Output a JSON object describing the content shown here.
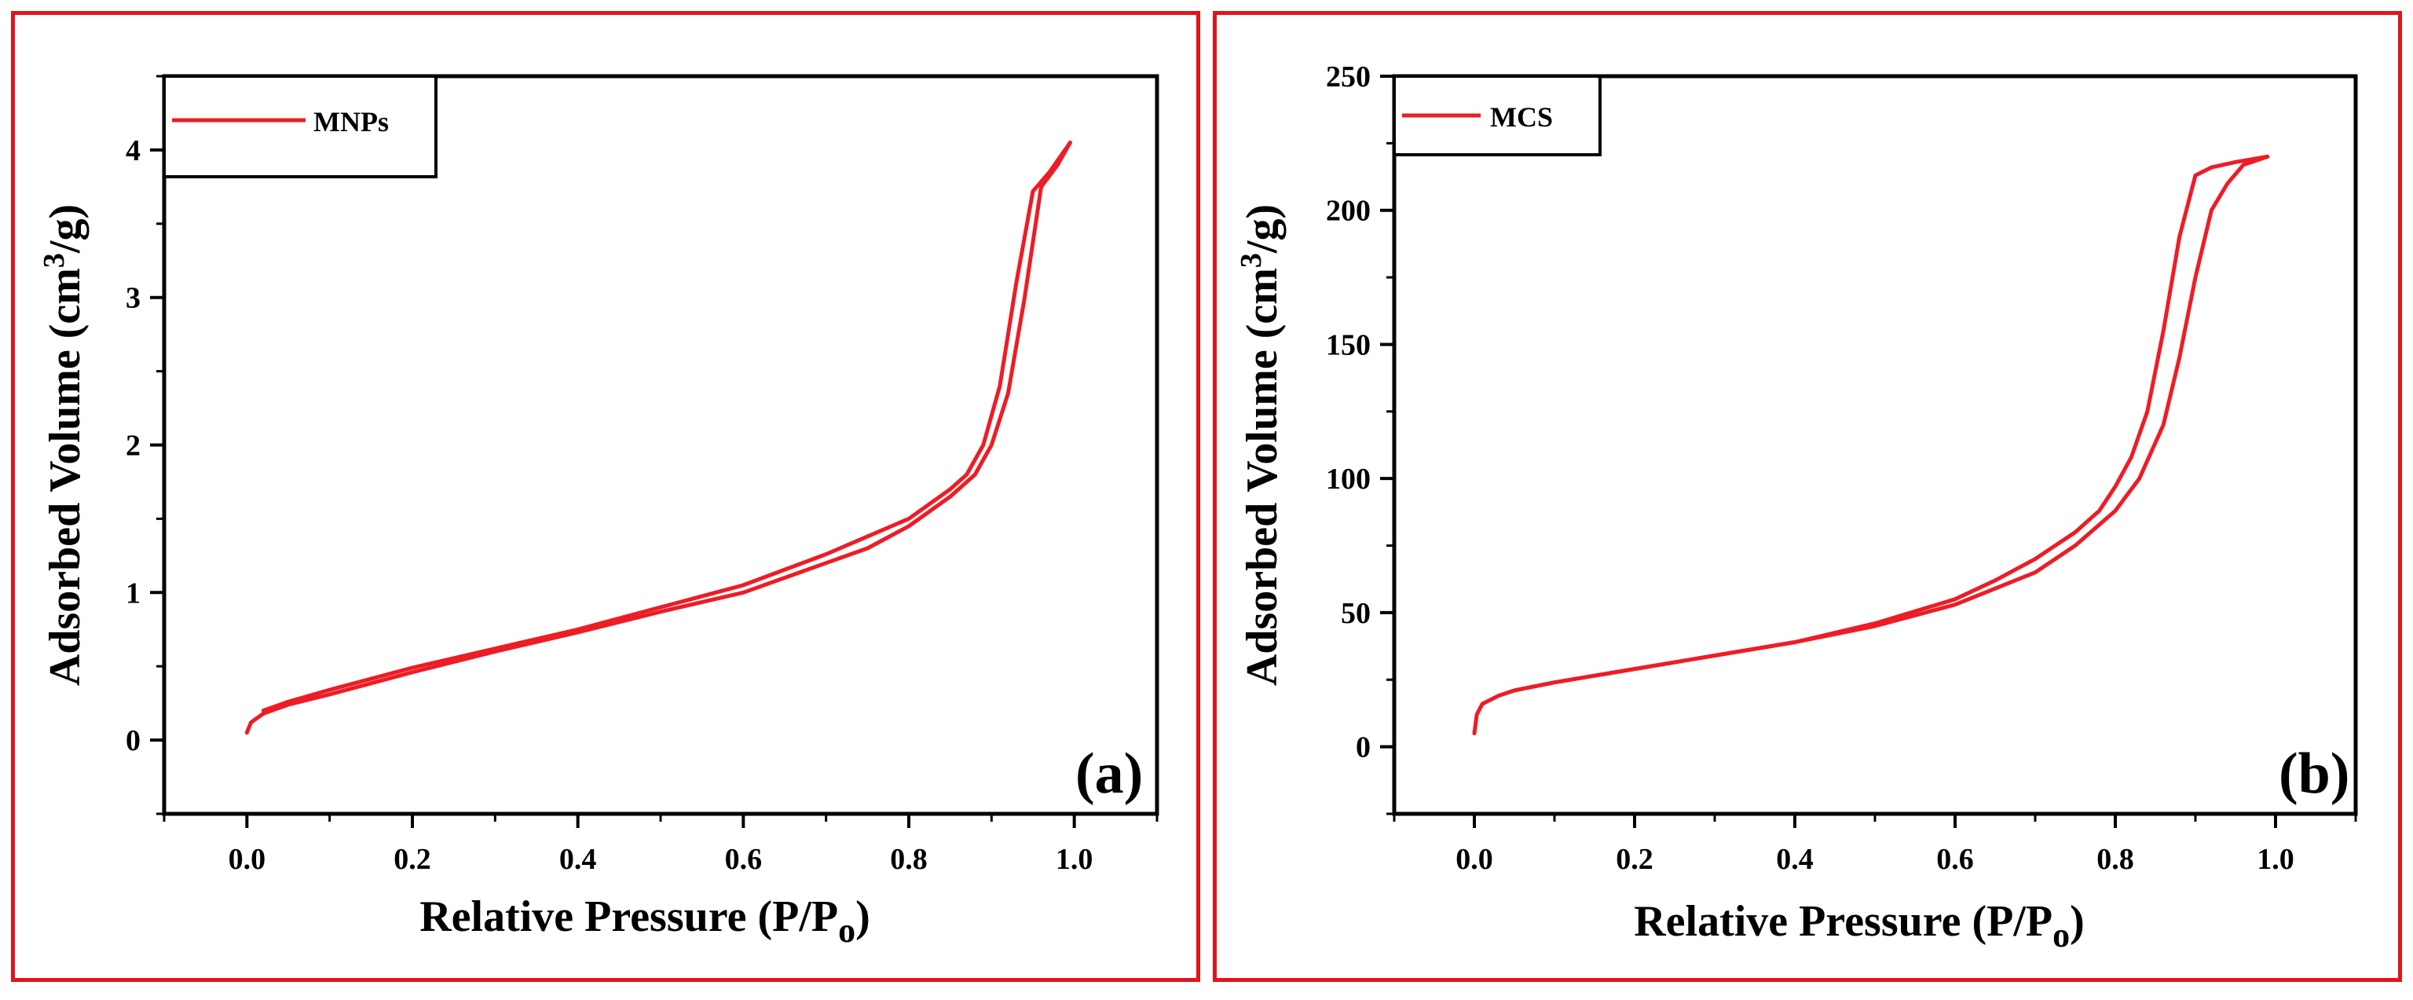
{
  "colors": {
    "frame": "#e0141c",
    "series": "#ee1c25",
    "axis": "#000000"
  },
  "chart_data": [
    {
      "type": "line",
      "panel_label": "(a)",
      "xlabel": "Relative Pressure (P/P",
      "xlabel_sub": "o",
      "xlabel_tail": ")",
      "ylabel_prefix": "Adsorbed Volume (cm",
      "ylabel_sup": "3",
      "ylabel_suffix": "/g)",
      "xlim": [
        -0.1,
        1.1
      ],
      "ylim": [
        -0.5,
        4.5
      ],
      "xticks": [
        0.0,
        0.2,
        0.4,
        0.6,
        0.8,
        1.0
      ],
      "xtick_labels": [
        "0.0",
        "0.2",
        "0.4",
        "0.6",
        "0.8",
        "1.0"
      ],
      "yticks": [
        0,
        1,
        2,
        3,
        4
      ],
      "ytick_labels": [
        "0",
        "1",
        "2",
        "3",
        "4"
      ],
      "legend": {
        "entries": [
          "MNPs"
        ],
        "position": "top-left"
      },
      "series": [
        {
          "name": "MNPs",
          "branch": "adsorption",
          "x": [
            0.0,
            0.005,
            0.02,
            0.05,
            0.1,
            0.2,
            0.3,
            0.4,
            0.5,
            0.6,
            0.7,
            0.75,
            0.8,
            0.85,
            0.88,
            0.9,
            0.92,
            0.94,
            0.96,
            0.98,
            0.995
          ],
          "y": [
            0.05,
            0.12,
            0.18,
            0.24,
            0.31,
            0.46,
            0.6,
            0.73,
            0.87,
            1.0,
            1.2,
            1.3,
            1.45,
            1.65,
            1.8,
            2.0,
            2.35,
            3.0,
            3.75,
            3.9,
            4.05
          ]
        },
        {
          "name": "MNPs",
          "branch": "desorption",
          "x": [
            0.995,
            0.97,
            0.95,
            0.93,
            0.91,
            0.89,
            0.87,
            0.85,
            0.8,
            0.75,
            0.7,
            0.6,
            0.5,
            0.4,
            0.3,
            0.2,
            0.1,
            0.05,
            0.02
          ],
          "y": [
            4.05,
            3.85,
            3.72,
            3.1,
            2.4,
            2.0,
            1.8,
            1.7,
            1.5,
            1.38,
            1.26,
            1.05,
            0.9,
            0.75,
            0.62,
            0.49,
            0.34,
            0.26,
            0.2
          ]
        }
      ]
    },
    {
      "type": "line",
      "panel_label": "(b)",
      "xlabel": "Relative Pressure (P/P",
      "xlabel_sub": "o",
      "xlabel_tail": ")",
      "ylabel_prefix": "Adsorbed Volume (cm",
      "ylabel_sup": "3",
      "ylabel_suffix": "/g)",
      "xlim": [
        -0.1,
        1.1
      ],
      "ylim": [
        -25,
        250
      ],
      "xticks": [
        0.0,
        0.2,
        0.4,
        0.6,
        0.8,
        1.0
      ],
      "xtick_labels": [
        "0.0",
        "0.2",
        "0.4",
        "0.6",
        "0.8",
        "1.0"
      ],
      "yticks": [
        0,
        50,
        100,
        150,
        200,
        250
      ],
      "ytick_labels": [
        "0",
        "50",
        "100",
        "150",
        "200",
        "250"
      ],
      "legend": {
        "entries": [
          "MCS"
        ],
        "position": "top-left"
      },
      "series": [
        {
          "name": "MCS",
          "branch": "adsorption",
          "x": [
            0.0,
            0.003,
            0.01,
            0.03,
            0.05,
            0.1,
            0.2,
            0.3,
            0.4,
            0.5,
            0.6,
            0.7,
            0.75,
            0.8,
            0.83,
            0.86,
            0.88,
            0.9,
            0.92,
            0.94,
            0.96,
            0.98,
            0.99
          ],
          "y": [
            5,
            12,
            16,
            19,
            21,
            24,
            29,
            34,
            39,
            45,
            53,
            65,
            75,
            88,
            100,
            120,
            145,
            175,
            200,
            210,
            217,
            219,
            220
          ]
        },
        {
          "name": "MCS",
          "branch": "desorption",
          "x": [
            0.99,
            0.95,
            0.92,
            0.9,
            0.88,
            0.86,
            0.84,
            0.82,
            0.8,
            0.78,
            0.75,
            0.7,
            0.65,
            0.6,
            0.5,
            0.4,
            0.3,
            0.2,
            0.1,
            0.05
          ],
          "y": [
            220,
            218,
            216,
            213,
            190,
            155,
            125,
            108,
            97,
            88,
            80,
            70,
            62,
            55,
            46,
            39,
            34,
            29,
            24,
            21
          ]
        }
      ]
    }
  ]
}
